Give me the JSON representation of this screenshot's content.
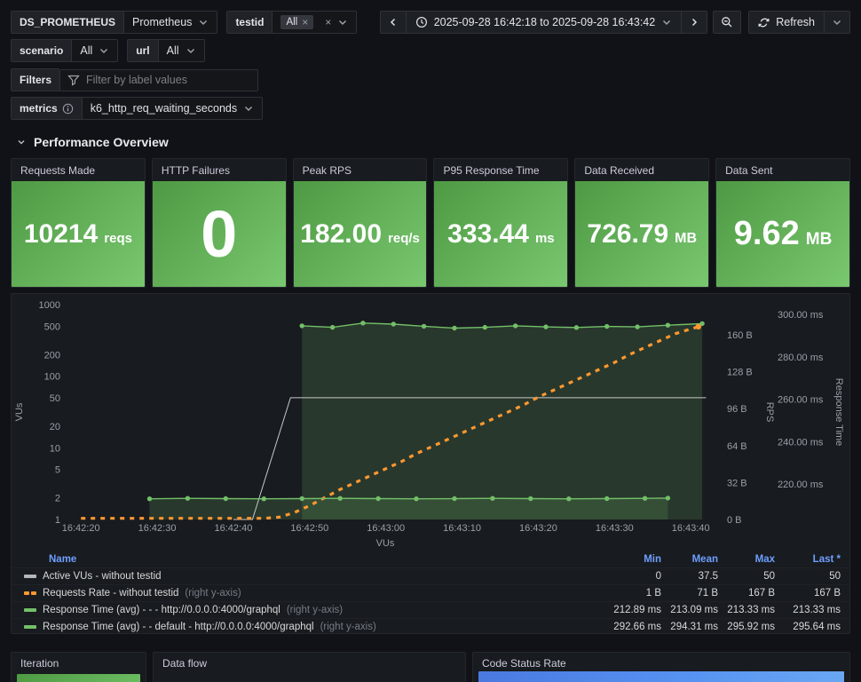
{
  "toolbar": {
    "ds": {
      "label": "DS_PROMETHEUS",
      "value": "Prometheus"
    },
    "testid": {
      "label": "testid",
      "chip": "All"
    },
    "scenario": {
      "label": "scenario",
      "value": "All"
    },
    "url": {
      "label": "url",
      "value": "All"
    },
    "filters": {
      "label": "Filters",
      "placeholder": "Filter by label values"
    },
    "metrics": {
      "label": "metrics",
      "value": "k6_http_req_waiting_seconds"
    },
    "time_range": "2025-09-28 16:42:18 to 2025-09-28 16:43:42",
    "refresh_label": "Refresh"
  },
  "section": {
    "title": "Performance Overview"
  },
  "stats": [
    {
      "title": "Requests Made",
      "value": "10214",
      "unit": "reqs"
    },
    {
      "title": "HTTP Failures",
      "value": "0",
      "unit": ""
    },
    {
      "title": "Peak RPS",
      "value": "182.00",
      "unit": "req/s"
    },
    {
      "title": "P95 Response Time",
      "value": "333.44",
      "unit": "ms"
    },
    {
      "title": "Data Received",
      "value": "726.79",
      "unit": "MB"
    },
    {
      "title": "Data Sent",
      "value": "9.62",
      "unit": "MB"
    }
  ],
  "chart_data": {
    "type": "line",
    "x_axis": {
      "label_below": "VUs",
      "start_time": "16:42:18",
      "domain_seconds": [
        0,
        84
      ],
      "ticks": [
        {
          "t": 2,
          "label": "16:42:20"
        },
        {
          "t": 12,
          "label": "16:42:30"
        },
        {
          "t": 22,
          "label": "16:42:40"
        },
        {
          "t": 32,
          "label": "16:42:50"
        },
        {
          "t": 42,
          "label": "16:43:00"
        },
        {
          "t": 52,
          "label": "16:43:10"
        },
        {
          "t": 62,
          "label": "16:43:20"
        },
        {
          "t": 72,
          "label": "16:43:30"
        },
        {
          "t": 82,
          "label": "16:43:40"
        }
      ]
    },
    "y_axes": [
      {
        "id": "vus",
        "side": "left",
        "label": "VUs",
        "scale": "log",
        "ticks": [
          1000,
          500,
          200,
          100,
          50,
          20,
          10,
          5,
          2,
          1
        ]
      },
      {
        "id": "rps",
        "side": "right",
        "label": "RPS",
        "scale": "linear",
        "ticks": [
          {
            "v": 0,
            "label": "0 B"
          },
          {
            "v": 32,
            "label": "32 B"
          },
          {
            "v": 64,
            "label": "64 B"
          },
          {
            "v": 96,
            "label": "96 B"
          },
          {
            "v": 128,
            "label": "128 B"
          },
          {
            "v": 160,
            "label": "160 B"
          }
        ]
      },
      {
        "id": "rt",
        "side": "right",
        "label": "Response Time",
        "scale": "linear",
        "ticks": [
          {
            "v": 220,
            "label": "220.00 ms"
          },
          {
            "v": 240,
            "label": "240.00 ms"
          },
          {
            "v": 260,
            "label": "260.00 ms"
          },
          {
            "v": 280,
            "label": "280.00 ms"
          },
          {
            "v": 300,
            "label": "300.00 ms"
          }
        ]
      }
    ],
    "series": [
      {
        "name": "Active VUs - without testid",
        "axis": "vus",
        "color": "#c7c8cc",
        "style": "solid",
        "points": [
          [
            22,
            0
          ],
          [
            24.5,
            0
          ],
          [
            29.5,
            50
          ],
          [
            84,
            50
          ]
        ]
      },
      {
        "name": "Requests Rate - without testid",
        "axis": "rps",
        "color": "#ff9830",
        "style": "dashed",
        "points": [
          [
            2,
            1
          ],
          [
            26,
            1
          ],
          [
            28,
            2
          ],
          [
            30,
            6
          ],
          [
            32,
            12
          ],
          [
            34,
            19
          ],
          [
            36,
            26
          ],
          [
            38,
            32
          ],
          [
            40,
            38
          ],
          [
            42,
            44
          ],
          [
            44,
            50
          ],
          [
            46,
            57
          ],
          [
            48,
            63
          ],
          [
            50,
            69
          ],
          [
            52,
            75
          ],
          [
            54,
            81
          ],
          [
            56,
            87
          ],
          [
            58,
            93
          ],
          [
            60,
            99
          ],
          [
            62,
            106
          ],
          [
            64,
            112
          ],
          [
            66,
            118
          ],
          [
            68,
            124
          ],
          [
            70,
            130
          ],
          [
            72,
            136
          ],
          [
            74,
            143
          ],
          [
            76,
            149
          ],
          [
            78,
            155
          ],
          [
            80,
            161
          ],
          [
            83,
            167
          ]
        ]
      },
      {
        "name": "Response Time (avg) - - - http://0.0.0.0:4000/graphql",
        "axis": "rt",
        "color": "#73bf69",
        "style": "points",
        "fill": true,
        "points": [
          [
            11,
            213.0
          ],
          [
            16,
            213.2
          ],
          [
            21,
            213.1
          ],
          [
            26,
            213.0
          ],
          [
            31,
            213.1
          ],
          [
            36,
            213.2
          ],
          [
            41,
            213.1
          ],
          [
            46,
            213.0
          ],
          [
            51,
            213.1
          ],
          [
            56,
            213.2
          ],
          [
            61,
            213.1
          ],
          [
            66,
            213.0
          ],
          [
            71,
            213.1
          ],
          [
            76,
            213.2
          ],
          [
            79,
            213.33
          ]
        ]
      },
      {
        "name": "Response Time (avg) - - default - http://0.0.0.0:4000/graphql",
        "axis": "rt",
        "color": "#73bf69",
        "style": "points",
        "fill": true,
        "points": [
          [
            31,
            294.6
          ],
          [
            35,
            293.9
          ],
          [
            39,
            295.9
          ],
          [
            43,
            295.4
          ],
          [
            47,
            294.4
          ],
          [
            51,
            293.5
          ],
          [
            55,
            293.9
          ],
          [
            59,
            294.6
          ],
          [
            63,
            294.1
          ],
          [
            67,
            293.8
          ],
          [
            71,
            294.3
          ],
          [
            75,
            294.1
          ],
          [
            79,
            294.9
          ],
          [
            83.5,
            295.64
          ]
        ]
      }
    ]
  },
  "legend": {
    "headers": {
      "name": "Name",
      "min": "Min",
      "mean": "Mean",
      "max": "Max",
      "last": "Last *"
    },
    "rows": [
      {
        "swatch": "gray",
        "name": "Active VUs - without testid",
        "suffix": "",
        "min": "0",
        "mean": "37.5",
        "max": "50",
        "last": "50"
      },
      {
        "swatch": "orange-dash",
        "name": "Requests Rate - without testid",
        "suffix": "(right y-axis)",
        "min": "1 B",
        "mean": "71 B",
        "max": "167 B",
        "last": "167 B"
      },
      {
        "swatch": "green",
        "name": "Response Time (avg) - - - http://0.0.0.0:4000/graphql",
        "suffix": "(right y-axis)",
        "min": "212.89 ms",
        "mean": "213.09 ms",
        "max": "213.33 ms",
        "last": "213.33 ms"
      },
      {
        "swatch": "green",
        "name": "Response Time (avg) - - default - http://0.0.0.0:4000/graphql",
        "suffix": "(right y-axis)",
        "min": "292.66 ms",
        "mean": "294.31 ms",
        "max": "295.92 ms",
        "last": "295.64 ms"
      }
    ]
  },
  "bottom_panels": [
    {
      "title": "Iteration"
    },
    {
      "title": "Data flow"
    },
    {
      "title": "Code Status Rate"
    }
  ],
  "colors": {
    "green": "#73bf69",
    "orange": "#ff9830",
    "gray_series": "#c7c8cc",
    "link_blue": "#6e9fff",
    "stat_gradient_start": "#4e9a44",
    "stat_gradient_end": "#79c76f",
    "blue_bar_start": "#4a79e0",
    "blue_bar_end": "#6aa7f2"
  }
}
